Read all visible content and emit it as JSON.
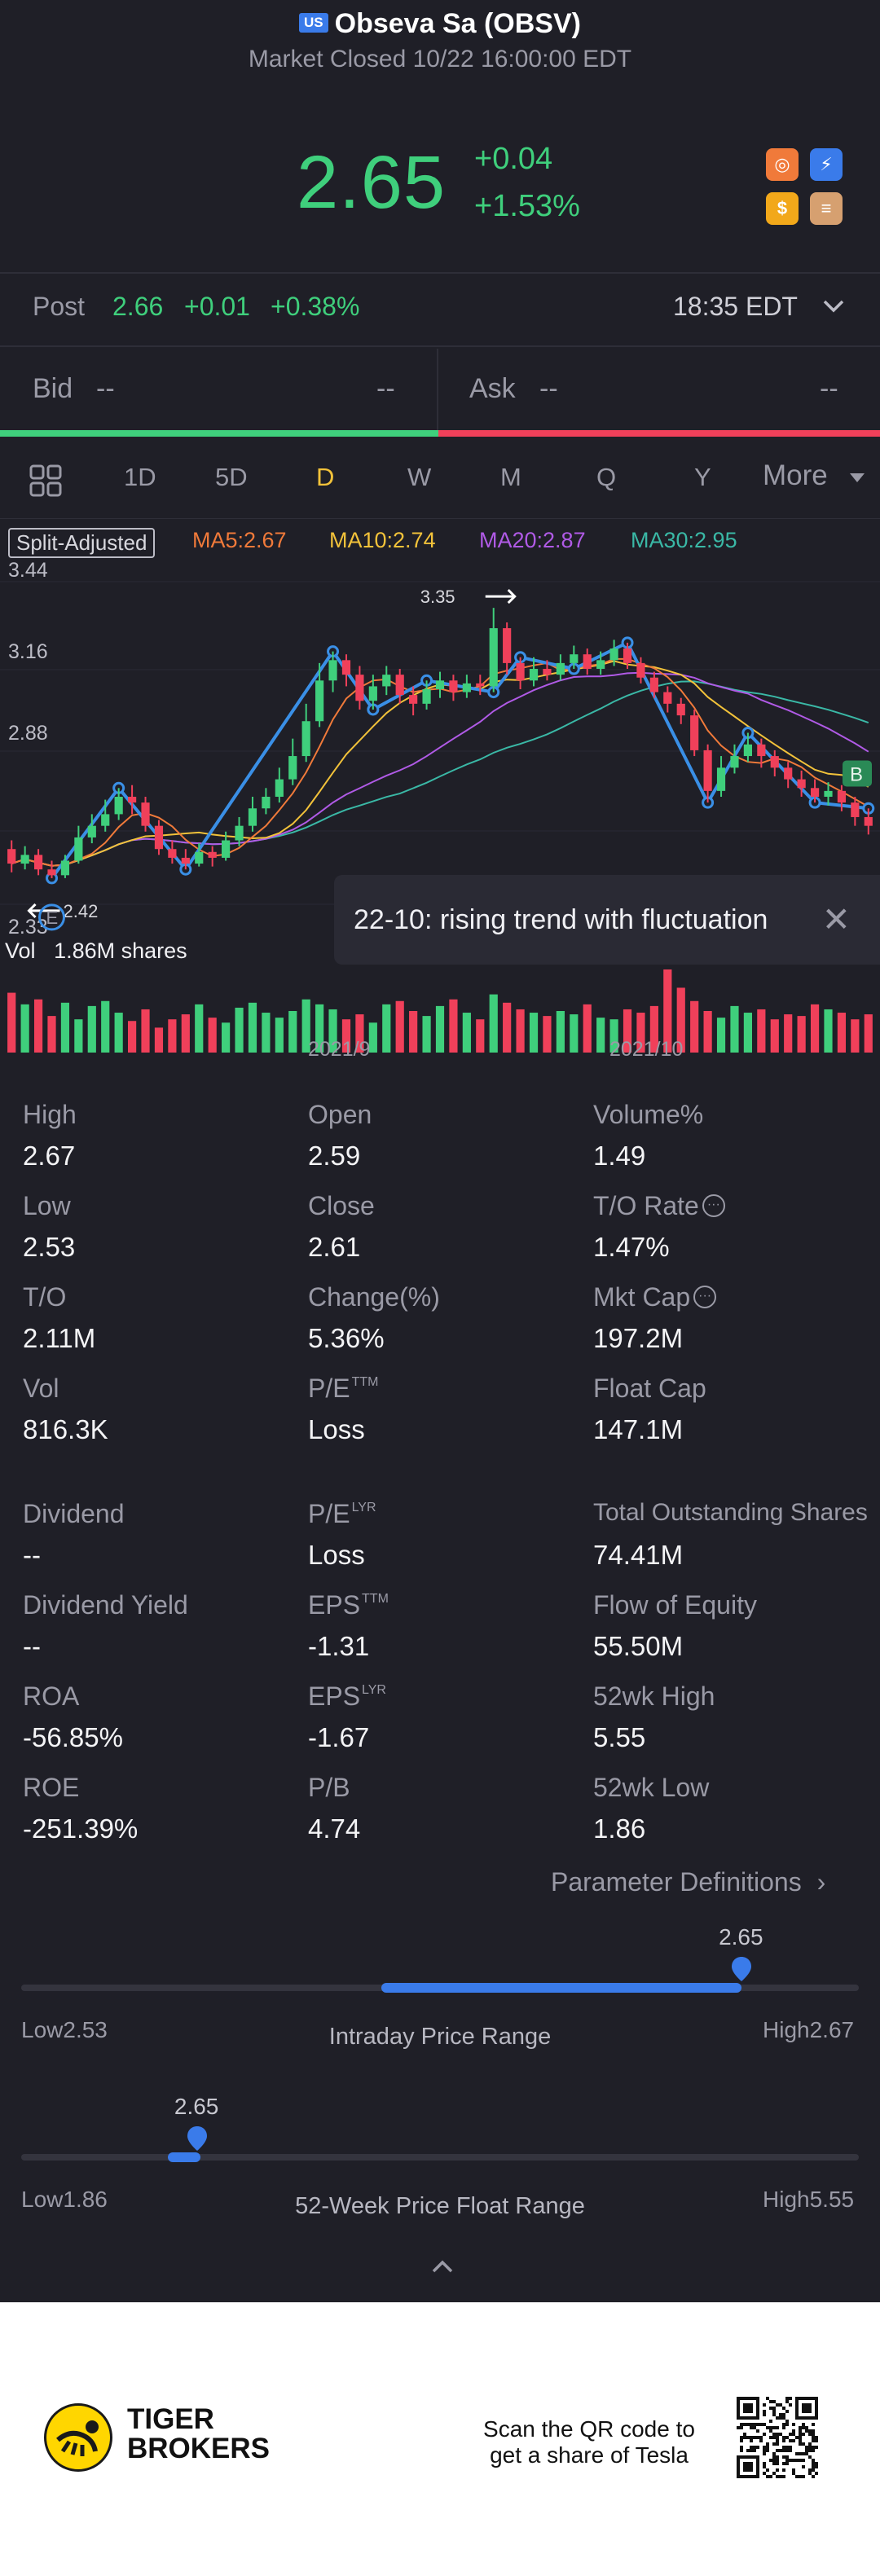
{
  "header": {
    "market_badge": "US",
    "title": "Obseva Sa (OBSV)",
    "status": "Market Closed 10/22 16:00:00 EDT"
  },
  "quote": {
    "price": "2.65",
    "change": "+0.04",
    "change_pct": "+1.53%"
  },
  "post": {
    "label": "Post",
    "price": "2.66",
    "change": "+0.01",
    "change_pct": "+0.38%",
    "time": "18:35 EDT"
  },
  "bid": {
    "label": "Bid",
    "price": "--",
    "size": "--"
  },
  "ask": {
    "label": "Ask",
    "price": "--",
    "size": "--"
  },
  "tabs": [
    "1D",
    "5D",
    "D",
    "W",
    "M",
    "Q",
    "Y"
  ],
  "tabs_active": "D",
  "tabs_more": "More",
  "ma": {
    "split": "Split-Adjusted",
    "ma5": "MA5:2.67",
    "ma10": "MA10:2.74",
    "ma20": "MA20:2.87",
    "ma30": "MA30:2.95"
  },
  "colors": {
    "up": "#3fcf7c",
    "down": "#f0405a",
    "ma5": "#f07a3a",
    "ma10": "#f2c23a",
    "ma20": "#b05ae6",
    "ma30": "#3ab8a6",
    "trend": "#3a8fe6",
    "accent": "#3a7bea"
  },
  "chart_data": {
    "type": "candlestick",
    "y_ticks": [
      "3.44",
      "3.16",
      "2.88",
      "2.33"
    ],
    "ylim": [
      2.33,
      3.44
    ],
    "x_labels": [
      "2021/9",
      "2021/10"
    ],
    "high_marker": "3.35",
    "low_marker": "2.42",
    "markers": [
      "E",
      "B"
    ],
    "volume_label": "Vol",
    "volume_value": "1.86M shares",
    "candles": [
      {
        "o": 2.52,
        "c": 2.47,
        "h": 2.55,
        "l": 2.44
      },
      {
        "o": 2.47,
        "c": 2.5,
        "h": 2.53,
        "l": 2.45
      },
      {
        "o": 2.5,
        "c": 2.45,
        "h": 2.52,
        "l": 2.43
      },
      {
        "o": 2.45,
        "c": 2.43,
        "h": 2.48,
        "l": 2.42
      },
      {
        "o": 2.43,
        "c": 2.48,
        "h": 2.5,
        "l": 2.42
      },
      {
        "o": 2.48,
        "c": 2.56,
        "h": 2.6,
        "l": 2.47
      },
      {
        "o": 2.56,
        "c": 2.6,
        "h": 2.64,
        "l": 2.54
      },
      {
        "o": 2.6,
        "c": 2.64,
        "h": 2.69,
        "l": 2.58
      },
      {
        "o": 2.64,
        "c": 2.7,
        "h": 2.73,
        "l": 2.62
      },
      {
        "o": 2.7,
        "c": 2.68,
        "h": 2.74,
        "l": 2.64
      },
      {
        "o": 2.68,
        "c": 2.6,
        "h": 2.7,
        "l": 2.58
      },
      {
        "o": 2.6,
        "c": 2.52,
        "h": 2.62,
        "l": 2.5
      },
      {
        "o": 2.52,
        "c": 2.49,
        "h": 2.55,
        "l": 2.47
      },
      {
        "o": 2.49,
        "c": 2.47,
        "h": 2.52,
        "l": 2.45
      },
      {
        "o": 2.47,
        "c": 2.51,
        "h": 2.54,
        "l": 2.46
      },
      {
        "o": 2.51,
        "c": 2.49,
        "h": 2.53,
        "l": 2.46
      },
      {
        "o": 2.49,
        "c": 2.55,
        "h": 2.58,
        "l": 2.48
      },
      {
        "o": 2.55,
        "c": 2.6,
        "h": 2.63,
        "l": 2.53
      },
      {
        "o": 2.6,
        "c": 2.66,
        "h": 2.7,
        "l": 2.58
      },
      {
        "o": 2.66,
        "c": 2.7,
        "h": 2.73,
        "l": 2.64
      },
      {
        "o": 2.7,
        "c": 2.76,
        "h": 2.8,
        "l": 2.68
      },
      {
        "o": 2.76,
        "c": 2.84,
        "h": 2.9,
        "l": 2.74
      },
      {
        "o": 2.84,
        "c": 2.96,
        "h": 3.02,
        "l": 2.82
      },
      {
        "o": 2.96,
        "c": 3.1,
        "h": 3.16,
        "l": 2.94
      },
      {
        "o": 3.1,
        "c": 3.17,
        "h": 3.2,
        "l": 3.06
      },
      {
        "o": 3.17,
        "c": 3.12,
        "h": 3.19,
        "l": 3.08
      },
      {
        "o": 3.12,
        "c": 3.03,
        "h": 3.15,
        "l": 3.0
      },
      {
        "o": 3.03,
        "c": 3.08,
        "h": 3.12,
        "l": 3.0
      },
      {
        "o": 3.08,
        "c": 3.12,
        "h": 3.15,
        "l": 3.05
      },
      {
        "o": 3.12,
        "c": 3.05,
        "h": 3.14,
        "l": 3.02
      },
      {
        "o": 3.05,
        "c": 3.02,
        "h": 3.08,
        "l": 2.98
      },
      {
        "o": 3.02,
        "c": 3.07,
        "h": 3.1,
        "l": 3.0
      },
      {
        "o": 3.07,
        "c": 3.1,
        "h": 3.13,
        "l": 3.04
      },
      {
        "o": 3.1,
        "c": 3.06,
        "h": 3.12,
        "l": 3.03
      },
      {
        "o": 3.06,
        "c": 3.09,
        "h": 3.12,
        "l": 3.04
      },
      {
        "o": 3.09,
        "c": 3.08,
        "h": 3.12,
        "l": 3.05
      },
      {
        "o": 3.08,
        "c": 3.28,
        "h": 3.35,
        "l": 3.06
      },
      {
        "o": 3.28,
        "c": 3.16,
        "h": 3.3,
        "l": 3.12
      },
      {
        "o": 3.16,
        "c": 3.1,
        "h": 3.18,
        "l": 3.07
      },
      {
        "o": 3.1,
        "c": 3.14,
        "h": 3.18,
        "l": 3.08
      },
      {
        "o": 3.14,
        "c": 3.12,
        "h": 3.17,
        "l": 3.1
      },
      {
        "o": 3.12,
        "c": 3.16,
        "h": 3.19,
        "l": 3.1
      },
      {
        "o": 3.16,
        "c": 3.19,
        "h": 3.22,
        "l": 3.14
      },
      {
        "o": 3.19,
        "c": 3.14,
        "h": 3.21,
        "l": 3.12
      },
      {
        "o": 3.14,
        "c": 3.17,
        "h": 3.2,
        "l": 3.12
      },
      {
        "o": 3.17,
        "c": 3.21,
        "h": 3.24,
        "l": 3.15
      },
      {
        "o": 3.21,
        "c": 3.16,
        "h": 3.23,
        "l": 3.14
      },
      {
        "o": 3.16,
        "c": 3.11,
        "h": 3.18,
        "l": 3.09
      },
      {
        "o": 3.11,
        "c": 3.06,
        "h": 3.13,
        "l": 3.04
      },
      {
        "o": 3.06,
        "c": 3.02,
        "h": 3.08,
        "l": 2.99
      },
      {
        "o": 3.02,
        "c": 2.98,
        "h": 3.04,
        "l": 2.95
      },
      {
        "o": 2.98,
        "c": 2.86,
        "h": 3.0,
        "l": 2.84
      },
      {
        "o": 2.86,
        "c": 2.72,
        "h": 2.88,
        "l": 2.68
      },
      {
        "o": 2.72,
        "c": 2.8,
        "h": 2.84,
        "l": 2.7
      },
      {
        "o": 2.8,
        "c": 2.84,
        "h": 2.88,
        "l": 2.78
      },
      {
        "o": 2.84,
        "c": 2.88,
        "h": 2.92,
        "l": 2.82
      },
      {
        "o": 2.88,
        "c": 2.84,
        "h": 2.9,
        "l": 2.8
      },
      {
        "o": 2.84,
        "c": 2.8,
        "h": 2.86,
        "l": 2.77
      },
      {
        "o": 2.8,
        "c": 2.76,
        "h": 2.82,
        "l": 2.73
      },
      {
        "o": 2.76,
        "c": 2.73,
        "h": 2.79,
        "l": 2.7
      },
      {
        "o": 2.73,
        "c": 2.7,
        "h": 2.76,
        "l": 2.68
      },
      {
        "o": 2.7,
        "c": 2.72,
        "h": 2.75,
        "l": 2.67
      },
      {
        "o": 2.72,
        "c": 2.68,
        "h": 2.74,
        "l": 2.65
      },
      {
        "o": 2.68,
        "c": 2.63,
        "h": 2.7,
        "l": 2.6
      },
      {
        "o": 2.63,
        "c": 2.6,
        "h": 2.66,
        "l": 2.57
      }
    ],
    "volumes": [
      72,
      58,
      64,
      44,
      60,
      40,
      56,
      62,
      48,
      38,
      52,
      30,
      40,
      46,
      58,
      42,
      36,
      54,
      60,
      48,
      42,
      50,
      64,
      58,
      52,
      40,
      46,
      36,
      58,
      62,
      50,
      44,
      56,
      64,
      48,
      40,
      70,
      60,
      52,
      48,
      44,
      50,
      46,
      58,
      42,
      40,
      52,
      48,
      56,
      100,
      78,
      62,
      50,
      42,
      56,
      48,
      52,
      40,
      46,
      44,
      58,
      52,
      48,
      40,
      46
    ]
  },
  "stats": [
    [
      {
        "label": "High",
        "value": "2.67"
      },
      {
        "label": "Open",
        "value": "2.59"
      },
      {
        "label": "Volume%",
        "value": "1.49"
      }
    ],
    [
      {
        "label": "Low",
        "value": "2.53"
      },
      {
        "label": "Close",
        "value": "2.61"
      },
      {
        "label": "T/O Rate",
        "value": "1.47%"
      }
    ],
    [
      {
        "label": "T/O",
        "value": "2.11M"
      },
      {
        "label": "Change(%)",
        "value": "5.36%"
      },
      {
        "label": "Mkt Cap",
        "value": "197.2M"
      }
    ],
    [
      {
        "label": "Vol",
        "value": "816.3K"
      },
      {
        "label": "P/E",
        "value": "Loss"
      },
      {
        "label": "Float Cap",
        "value": "147.1M"
      }
    ],
    [
      {
        "label": "Dividend",
        "value": "--"
      },
      {
        "label": "P/E",
        "value": "Loss"
      },
      {
        "label": "Total Outstanding Shares",
        "value": "74.41M"
      }
    ],
    [
      {
        "label": "Dividend Yield",
        "value": "--"
      },
      {
        "label": "EPS",
        "value": "-1.31"
      },
      {
        "label": "Flow of Equity",
        "value": "55.50M"
      }
    ],
    [
      {
        "label": "ROA",
        "value": "-56.85%"
      },
      {
        "label": "EPS",
        "value": "-1.67"
      },
      {
        "label": "52wk High",
        "value": "5.55"
      }
    ],
    [
      {
        "label": "ROE",
        "value": "-251.39%"
      },
      {
        "label": "P/B",
        "value": "4.74"
      },
      {
        "label": "52wk Low",
        "value": "1.86"
      }
    ]
  ],
  "superscripts": {
    "ttm": "TTM",
    "lyr": "LYR"
  },
  "param_defs": "Parameter Definitions",
  "intraday": {
    "title": "Intraday Price Range",
    "low_label": "Low",
    "low": "2.53",
    "high_label": "High",
    "high": "2.67",
    "current": "2.65",
    "fill_start_fraction": 0.43,
    "current_fraction": 0.86
  },
  "week52": {
    "title": "52-Week Price Float Range",
    "low_label": "Low",
    "low": "1.86",
    "high_label": "High",
    "high": "5.55",
    "current": "2.65",
    "current_fraction": 0.21
  },
  "tooltip": "22-10: rising trend with fluctuation",
  "footer": {
    "brand_line1": "TIGER",
    "brand_line2": "BROKERS",
    "qr_line1": "Scan the QR code to",
    "qr_line2": "get a share of Tesla"
  }
}
